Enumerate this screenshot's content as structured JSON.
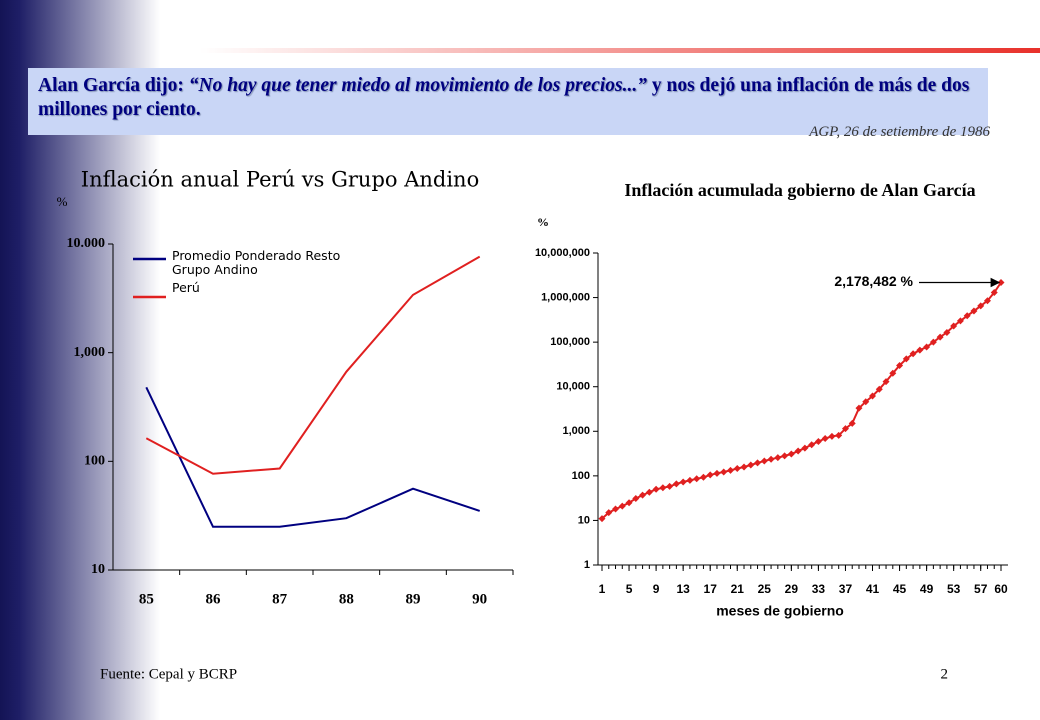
{
  "headline": {
    "lead": "Alan García dijo:",
    "quote": "“No hay que tener miedo al movimiento de los precios...”",
    "rest": "y nos dejó una inflación de más de dos millones por ciento."
  },
  "source_note": "AGP, 26 de setiembre de 1986",
  "footer": {
    "source": "Fuente: Cepal y BCRP",
    "page": "2"
  },
  "chart_data": [
    {
      "type": "line",
      "title": "Inflación anual  Perú vs Grupo Andino",
      "y_label": "%",
      "categories": [
        "85",
        "86",
        "87",
        "88",
        "89",
        "90"
      ],
      "series": [
        {
          "name": "Promedio Ponderado Resto Grupo Andino",
          "color": "#000080",
          "values": [
            480,
            25,
            25,
            30,
            56,
            35
          ]
        },
        {
          "name": "Perú",
          "color": "#e02020",
          "values": [
            163,
            77,
            86,
            667,
            3399,
            7650
          ]
        }
      ],
      "ylim": [
        10,
        10000
      ],
      "log_scale": true,
      "yticks": [
        10,
        100,
        {
          "value": 1000,
          "label": "1,000"
        },
        {
          "value": 10000,
          "label": "10.000"
        }
      ],
      "legend": "upper-left"
    },
    {
      "type": "line",
      "title": "Inflación acumulada gobierno de Alan García",
      "y_label": "%",
      "x_label": "meses de gobierno",
      "x": [
        1,
        2,
        3,
        4,
        5,
        6,
        7,
        8,
        9,
        10,
        11,
        12,
        13,
        14,
        15,
        16,
        17,
        18,
        19,
        20,
        21,
        22,
        23,
        24,
        25,
        26,
        27,
        28,
        29,
        30,
        31,
        32,
        33,
        34,
        35,
        36,
        37,
        38,
        39,
        40,
        41,
        42,
        43,
        44,
        45,
        46,
        47,
        48,
        49,
        50,
        51,
        52,
        53,
        54,
        55,
        56,
        57,
        58,
        59,
        60
      ],
      "series": [
        {
          "color": "#e02020",
          "values": [
            11,
            15,
            18,
            21,
            25,
            31,
            37,
            43,
            50,
            54,
            58,
            66,
            73,
            79,
            86,
            93,
            105,
            114,
            122,
            133,
            146,
            158,
            175,
            195,
            215,
            236,
            256,
            280,
            310,
            360,
            420,
            500,
            590,
            690,
            770,
            810,
            1150,
            1500,
            3300,
            4600,
            6200,
            8800,
            13000,
            20000,
            30000,
            42000,
            55000,
            66000,
            78000,
            100000,
            130000,
            165000,
            230000,
            300000,
            390000,
            500000,
            650000,
            850000,
            1300000,
            2178482
          ]
        }
      ],
      "xlim": [
        1,
        60
      ],
      "xticks": [
        1,
        5,
        9,
        13,
        17,
        21,
        25,
        29,
        33,
        37,
        41,
        45,
        49,
        53,
        57,
        60
      ],
      "ylim": [
        1,
        10000000
      ],
      "log_scale": true,
      "yticks": [
        1,
        10,
        100,
        {
          "value": 1000,
          "label": "1,000"
        },
        {
          "value": 10000,
          "label": "10,000"
        },
        {
          "value": 100000,
          "label": "100,000"
        },
        {
          "value": 1000000,
          "label": "1,000,000"
        },
        {
          "value": 10000000,
          "label": "10,000,000"
        }
      ],
      "marker": "diamond",
      "annotations": [
        {
          "text": "2,178,482 %",
          "x": 60,
          "y": 2178482
        }
      ]
    }
  ]
}
